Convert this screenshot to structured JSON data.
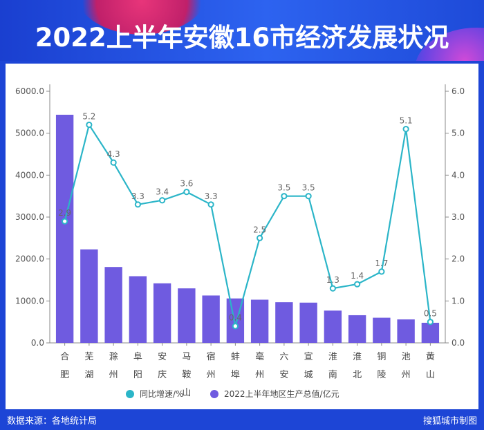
{
  "title": "2022上半年安徽16市经济发展状况",
  "footer": {
    "source": "数据来源：各地统计局",
    "credit": "搜狐城市制图"
  },
  "colors": {
    "bar": "#6f5be0",
    "line": "#2bb5c8",
    "background": "#1d45d6"
  },
  "chart_data": {
    "type": "bar",
    "categories": [
      [
        "合",
        "肥"
      ],
      [
        "芜",
        "湖"
      ],
      [
        "滁",
        "州"
      ],
      [
        "阜",
        "阳"
      ],
      [
        "安",
        "庆"
      ],
      [
        "马",
        "鞍",
        "山"
      ],
      [
        "宿",
        "州"
      ],
      [
        "蚌",
        "埠"
      ],
      [
        "亳",
        "州"
      ],
      [
        "六",
        "安"
      ],
      [
        "宣",
        "城"
      ],
      [
        "淮",
        "南"
      ],
      [
        "淮",
        "北"
      ],
      [
        "铜",
        "陵"
      ],
      [
        "池",
        "州"
      ],
      [
        "黄",
        "山"
      ]
    ],
    "series": [
      {
        "name": "2022上半年地区生产总值/亿元",
        "type": "bar",
        "axis": "left",
        "values": [
          5440,
          2230,
          1810,
          1590,
          1420,
          1300,
          1130,
          1060,
          1030,
          970,
          960,
          770,
          660,
          600,
          560,
          480
        ]
      },
      {
        "name": "同比增速/%",
        "type": "line",
        "axis": "right",
        "values": [
          2.9,
          5.2,
          4.3,
          3.3,
          3.4,
          3.6,
          3.3,
          0.4,
          2.5,
          3.5,
          3.5,
          1.3,
          1.4,
          1.7,
          5.1,
          0.5
        ],
        "labels": [
          "2.9",
          "5.2",
          "4.3",
          "3.3",
          "3.4",
          "3.6",
          "3.3",
          "0.4",
          "2.5",
          "3.5",
          "3.5",
          "1.3",
          "1.4",
          "1.7",
          "5.1",
          "0.5"
        ]
      }
    ],
    "y_left": {
      "min": 0,
      "max": 6000,
      "ticks": [
        "0.0",
        "1000.0",
        "2000.0",
        "3000.0",
        "4000.0",
        "5000.0",
        "6000.0"
      ]
    },
    "y_right": {
      "min": 0,
      "max": 6,
      "ticks": [
        "0.0",
        "1.0",
        "2.0",
        "3.0",
        "4.0",
        "5.0",
        "6.0"
      ]
    },
    "grid": false,
    "legend_position": "bottom"
  }
}
